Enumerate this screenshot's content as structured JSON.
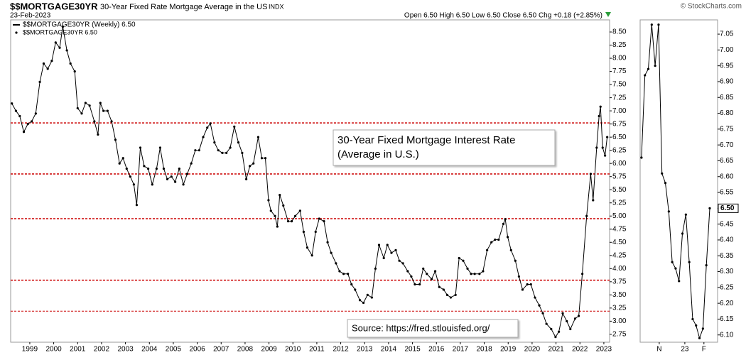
{
  "header": {
    "symbol": "$$MORTGAGE30YR",
    "title": "30-Year Fixed Rate Mortgage Average in the US",
    "exchange": "INDX",
    "date": "23-Feb-2023",
    "brand": "© StockCharts.com",
    "quote": "Open 6.50  High 6.50  Low 6.50  Close 6.50  Chg +0.18 (+2.85%)"
  },
  "chart_data": [
    {
      "type": "line",
      "series": [
        {
          "name": "$$MORTGAGE30YR (Weekly) 6.50",
          "color": "#000000",
          "x": [
            1998.25,
            1998.42,
            1998.58,
            1998.75,
            1998.92,
            1999.08,
            1999.25,
            1999.42,
            1999.58,
            1999.75,
            1999.92,
            2000.08,
            2000.25,
            2000.38,
            2000.55,
            2000.7,
            2000.88,
            2001.0,
            2001.17,
            2001.33,
            2001.5,
            2001.7,
            2001.85,
            2001.95,
            2002.08,
            2002.25,
            2002.42,
            2002.58,
            2002.75,
            2002.9,
            2003.05,
            2003.2,
            2003.35,
            2003.47,
            2003.62,
            2003.78,
            2003.95,
            2004.12,
            2004.3,
            2004.45,
            2004.6,
            2004.75,
            2004.92,
            2005.08,
            2005.25,
            2005.42,
            2005.58,
            2005.75,
            2005.92,
            2006.08,
            2006.25,
            2006.42,
            2006.55,
            2006.72,
            2006.88,
            2007.05,
            2007.22,
            2007.38,
            2007.55,
            2007.72,
            2007.88,
            2008.05,
            2008.2,
            2008.35,
            2008.55,
            2008.7,
            2008.85,
            2008.98,
            2009.08,
            2009.25,
            2009.35,
            2009.45,
            2009.6,
            2009.8,
            2009.95,
            2010.1,
            2010.3,
            2010.45,
            2010.6,
            2010.8,
            2010.95,
            2011.1,
            2011.3,
            2011.45,
            2011.6,
            2011.8,
            2011.95,
            2012.12,
            2012.3,
            2012.45,
            2012.6,
            2012.8,
            2012.95,
            2013.12,
            2013.3,
            2013.45,
            2013.6,
            2013.8,
            2013.95,
            2014.12,
            2014.3,
            2014.45,
            2014.6,
            2014.8,
            2014.95,
            2015.1,
            2015.3,
            2015.45,
            2015.6,
            2015.8,
            2015.95,
            2016.12,
            2016.3,
            2016.45,
            2016.6,
            2016.8,
            2016.95,
            2017.12,
            2017.3,
            2017.45,
            2017.6,
            2017.8,
            2017.95,
            2018.12,
            2018.3,
            2018.45,
            2018.6,
            2018.8,
            2018.88,
            2018.98,
            2019.12,
            2019.3,
            2019.45,
            2019.6,
            2019.8,
            2019.95,
            2020.12,
            2020.3,
            2020.45,
            2020.6,
            2020.8,
            2020.98,
            2021.12,
            2021.28,
            2021.45,
            2021.6,
            2021.8,
            2021.95,
            2022.1,
            2022.28,
            2022.45,
            2022.55,
            2022.7,
            2022.8,
            2022.86,
            2022.95,
            2023.05,
            2023.14
          ],
          "values": [
            7.14,
            7.0,
            6.9,
            6.6,
            6.75,
            6.8,
            6.95,
            7.55,
            7.9,
            7.8,
            7.95,
            8.3,
            8.2,
            8.6,
            8.15,
            7.9,
            7.75,
            7.05,
            6.95,
            7.15,
            7.1,
            6.8,
            6.55,
            7.15,
            7.0,
            7.0,
            6.8,
            6.45,
            6.0,
            6.1,
            5.9,
            5.75,
            5.6,
            5.21,
            6.3,
            5.95,
            5.9,
            5.6,
            5.9,
            6.3,
            5.9,
            5.7,
            5.75,
            5.65,
            5.9,
            5.6,
            5.8,
            6.0,
            6.25,
            6.25,
            6.5,
            6.68,
            6.76,
            6.4,
            6.25,
            6.2,
            6.2,
            6.3,
            6.7,
            6.4,
            6.2,
            5.7,
            5.95,
            6.0,
            6.5,
            6.1,
            6.1,
            5.3,
            5.1,
            5.0,
            4.8,
            5.4,
            5.2,
            4.9,
            4.9,
            5.0,
            5.1,
            4.7,
            4.4,
            4.25,
            4.7,
            4.95,
            4.9,
            4.5,
            4.3,
            4.1,
            3.95,
            3.9,
            3.9,
            3.7,
            3.6,
            3.4,
            3.35,
            3.5,
            3.45,
            4.0,
            4.45,
            4.2,
            4.45,
            4.3,
            4.35,
            4.15,
            4.1,
            3.95,
            3.85,
            3.7,
            3.7,
            4.0,
            3.9,
            3.8,
            3.95,
            3.65,
            3.6,
            3.5,
            3.45,
            3.5,
            4.2,
            4.15,
            4.0,
            3.9,
            3.9,
            3.9,
            3.95,
            4.35,
            4.5,
            4.55,
            4.55,
            4.85,
            4.94,
            4.6,
            4.35,
            4.15,
            3.85,
            3.6,
            3.7,
            3.7,
            3.45,
            3.3,
            3.15,
            2.95,
            2.85,
            2.7,
            2.8,
            3.15,
            3.0,
            2.85,
            3.05,
            3.1,
            3.9,
            5.0,
            5.8,
            5.3,
            6.3,
            6.9,
            7.08,
            6.3,
            6.15,
            6.5
          ]
        }
      ],
      "legend": [
        "$$MORTGAGE30YR (Weekly) 6.50",
        "$$MORTGAGE30YR 6.50"
      ],
      "xlim": [
        1998.2,
        2023.24
      ],
      "ylim": [
        2.6,
        8.73
      ],
      "xticks": [
        1999,
        2000,
        2001,
        2002,
        2003,
        2004,
        2005,
        2006,
        2007,
        2008,
        2009,
        2010,
        2011,
        2012,
        2013,
        2014,
        2015,
        2016,
        2017,
        2018,
        2019,
        2020,
        2021,
        2022,
        2023
      ],
      "yticks": [
        {
          "value": 2.75,
          "label": "2.75"
        },
        {
          "value": 3,
          "label": "3.00"
        },
        {
          "value": 3.25,
          "label": "3.25"
        },
        {
          "value": 3.5,
          "label": "3.50"
        },
        {
          "value": 3.75,
          "label": "3.75"
        },
        {
          "value": 4,
          "label": "4.00"
        },
        {
          "value": 4.25,
          "label": "4.25"
        },
        {
          "value": 4.5,
          "label": "4.50"
        },
        {
          "value": 4.75,
          "label": "4.75"
        },
        {
          "value": 5,
          "label": "5.00"
        },
        {
          "value": 5.25,
          "label": "5.25"
        },
        {
          "value": 5.5,
          "label": "5.50"
        },
        {
          "value": 5.75,
          "label": "5.75"
        },
        {
          "value": 6,
          "label": "6.00"
        },
        {
          "value": 6.25,
          "label": "6.25"
        },
        {
          "value": 6.5,
          "label": "6.50"
        },
        {
          "value": 6.75,
          "label": "6.75"
        },
        {
          "value": 7,
          "label": "7.00"
        },
        {
          "value": 7.25,
          "label": "7.25"
        },
        {
          "value": 7.5,
          "label": "7.50"
        },
        {
          "value": 7.75,
          "label": "7.75"
        },
        {
          "value": 8,
          "label": "8.00"
        },
        {
          "value": 8.25,
          "label": "8.25"
        },
        {
          "value": 8.5,
          "label": "8.50"
        }
      ],
      "hlines": {
        "values": [
          6.77,
          5.8,
          4.95,
          3.78,
          3.19
        ],
        "color": "#cc0000"
      },
      "annotation": [
        "30-Year Fixed Mortgage Interest Rate",
        "(Average in U.S.)"
      ],
      "source": "Source: https://fred.stlouisfed.org/"
    },
    {
      "type": "line",
      "series": [
        {
          "color": "#000000",
          "x": [
            0,
            1,
            2,
            3,
            4,
            5,
            6,
            7,
            8,
            9,
            10,
            11,
            12,
            13,
            14,
            15,
            16,
            17,
            18,
            19,
            20
          ],
          "values": [
            6.66,
            6.92,
            6.94,
            7.08,
            6.95,
            7.08,
            6.61,
            6.58,
            6.49,
            6.33,
            6.31,
            6.27,
            6.42,
            6.48,
            6.33,
            6.15,
            6.13,
            6.09,
            6.12,
            6.32,
            6.5
          ]
        }
      ],
      "last_label": "6.50",
      "xlim": [
        -0.4,
        22.3
      ],
      "ylim": [
        6.077,
        7.095
      ],
      "xticks": [
        {
          "value": 5.2,
          "label": "N"
        },
        {
          "value": 12.7,
          "label": "23"
        },
        {
          "value": 18.3,
          "label": "F"
        }
      ],
      "yticks": [
        {
          "value": 6.1,
          "label": "6.10"
        },
        {
          "value": 6.15,
          "label": "6.15"
        },
        {
          "value": 6.2,
          "label": "6.20"
        },
        {
          "value": 6.25,
          "label": "6.25"
        },
        {
          "value": 6.3,
          "label": "6.30"
        },
        {
          "value": 6.35,
          "label": "6.35"
        },
        {
          "value": 6.4,
          "label": "6.40"
        },
        {
          "value": 6.45,
          "label": "6.45"
        },
        {
          "value": 6.5,
          "label": "6.50"
        },
        {
          "value": 6.55,
          "label": "6.55"
        },
        {
          "value": 6.6,
          "label": "6.60"
        },
        {
          "value": 6.65,
          "label": "6.65"
        },
        {
          "value": 6.7,
          "label": "6.70"
        },
        {
          "value": 6.75,
          "label": "6.75"
        },
        {
          "value": 6.8,
          "label": "6.80"
        },
        {
          "value": 6.85,
          "label": "6.85"
        },
        {
          "value": 6.9,
          "label": "6.90"
        },
        {
          "value": 6.95,
          "label": "6.95"
        },
        {
          "value": 7,
          "label": "7.00"
        },
        {
          "value": 7.05,
          "label": "7.05"
        }
      ]
    }
  ]
}
